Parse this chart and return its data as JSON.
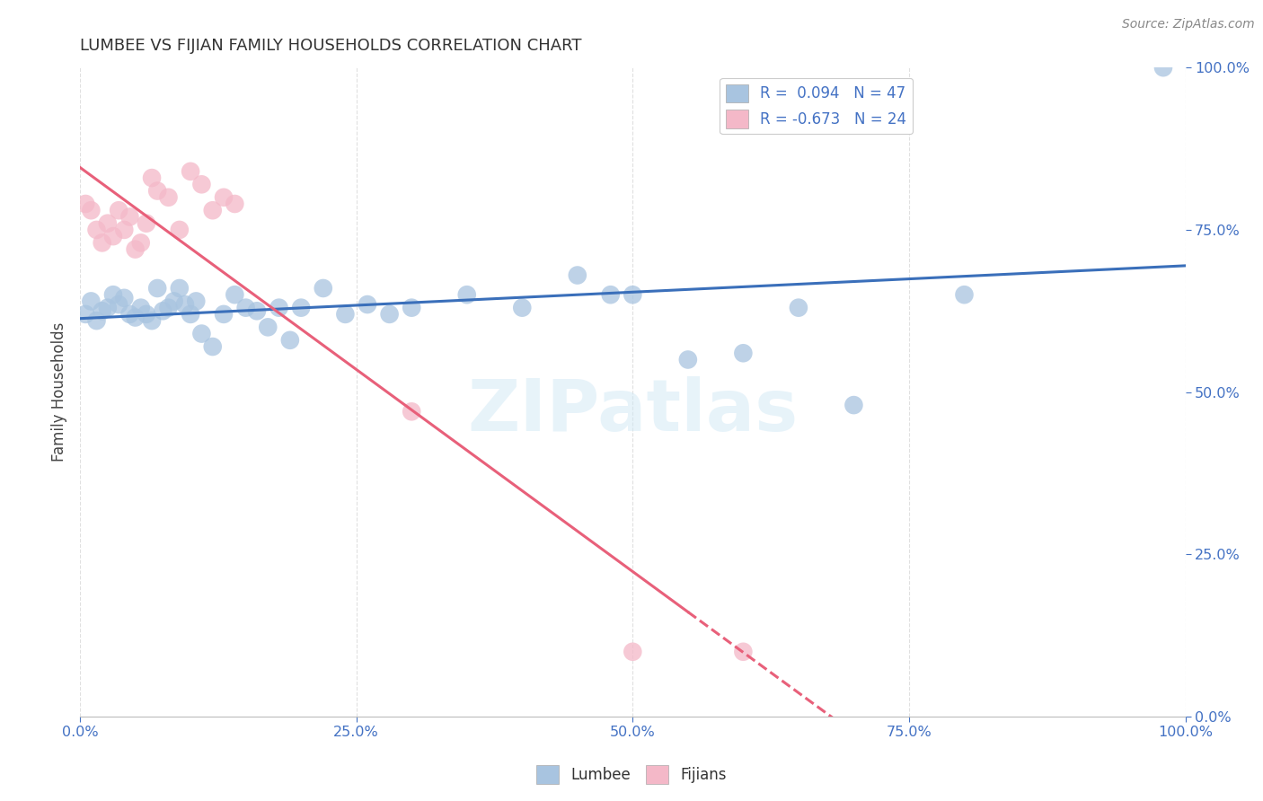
{
  "title": "LUMBEE VS FIJIAN FAMILY HOUSEHOLDS CORRELATION CHART",
  "source": "Source: ZipAtlas.com",
  "ylabel": "Family Households",
  "lumbee_R": 0.094,
  "lumbee_N": 47,
  "fijian_R": -0.673,
  "fijian_N": 24,
  "lumbee_color": "#a8c4e0",
  "fijian_color": "#f4b8c8",
  "lumbee_line_color": "#3a6fba",
  "fijian_line_color": "#e8607a",
  "lumbee_scatter": [
    [
      0.5,
      62.0
    ],
    [
      1.0,
      64.0
    ],
    [
      1.5,
      61.0
    ],
    [
      2.0,
      62.5
    ],
    [
      2.5,
      63.0
    ],
    [
      3.0,
      65.0
    ],
    [
      3.5,
      63.5
    ],
    [
      4.0,
      64.5
    ],
    [
      4.5,
      62.0
    ],
    [
      5.0,
      61.5
    ],
    [
      5.5,
      63.0
    ],
    [
      6.0,
      62.0
    ],
    [
      6.5,
      61.0
    ],
    [
      7.0,
      66.0
    ],
    [
      7.5,
      62.5
    ],
    [
      8.0,
      63.0
    ],
    [
      8.5,
      64.0
    ],
    [
      9.0,
      66.0
    ],
    [
      9.5,
      63.5
    ],
    [
      10.0,
      62.0
    ],
    [
      10.5,
      64.0
    ],
    [
      11.0,
      59.0
    ],
    [
      12.0,
      57.0
    ],
    [
      13.0,
      62.0
    ],
    [
      14.0,
      65.0
    ],
    [
      15.0,
      63.0
    ],
    [
      16.0,
      62.5
    ],
    [
      17.0,
      60.0
    ],
    [
      18.0,
      63.0
    ],
    [
      19.0,
      58.0
    ],
    [
      20.0,
      63.0
    ],
    [
      22.0,
      66.0
    ],
    [
      24.0,
      62.0
    ],
    [
      26.0,
      63.5
    ],
    [
      28.0,
      62.0
    ],
    [
      30.0,
      63.0
    ],
    [
      35.0,
      65.0
    ],
    [
      40.0,
      63.0
    ],
    [
      45.0,
      68.0
    ],
    [
      48.0,
      65.0
    ],
    [
      50.0,
      65.0
    ],
    [
      55.0,
      55.0
    ],
    [
      60.0,
      56.0
    ],
    [
      65.0,
      63.0
    ],
    [
      70.0,
      48.0
    ],
    [
      80.0,
      65.0
    ],
    [
      98.0,
      100.0
    ]
  ],
  "fijian_scatter": [
    [
      0.5,
      79.0
    ],
    [
      1.0,
      78.0
    ],
    [
      1.5,
      75.0
    ],
    [
      2.0,
      73.0
    ],
    [
      2.5,
      76.0
    ],
    [
      3.0,
      74.0
    ],
    [
      3.5,
      78.0
    ],
    [
      4.0,
      75.0
    ],
    [
      4.5,
      77.0
    ],
    [
      5.0,
      72.0
    ],
    [
      5.5,
      73.0
    ],
    [
      6.0,
      76.0
    ],
    [
      6.5,
      83.0
    ],
    [
      7.0,
      81.0
    ],
    [
      8.0,
      80.0
    ],
    [
      9.0,
      75.0
    ],
    [
      10.0,
      84.0
    ],
    [
      11.0,
      82.0
    ],
    [
      12.0,
      78.0
    ],
    [
      13.0,
      80.0
    ],
    [
      14.0,
      79.0
    ],
    [
      30.0,
      47.0
    ],
    [
      50.0,
      10.0
    ],
    [
      60.0,
      10.0
    ]
  ],
  "ylim": [
    0,
    100
  ],
  "xlim": [
    0,
    100
  ],
  "yticks": [
    0,
    25,
    50,
    75,
    100
  ],
  "xticks": [
    0,
    25,
    50,
    75,
    100
  ],
  "fijian_solid_end": 55,
  "watermark_text": "ZIPatlas",
  "watermark_color": "#d0e8f5",
  "background_color": "#ffffff",
  "grid_color": "#cccccc",
  "tick_label_color": "#4472c4",
  "title_color": "#333333",
  "source_color": "#888888"
}
